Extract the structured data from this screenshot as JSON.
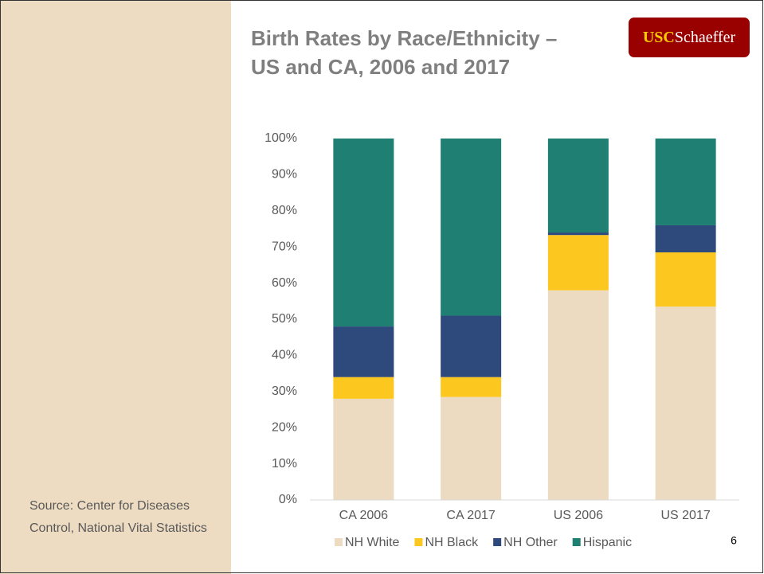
{
  "chart_data": {
    "type": "stacked_bar",
    "title": [
      "Birth Rates by Race/Ethnicity –",
      "US and CA, 2006 and 2017"
    ],
    "categories": [
      "CA 2006",
      "CA 2017",
      "US 2006",
      "US 2017"
    ],
    "series": [
      {
        "name": "NH White",
        "color": "#ecdbc0",
        "values": [
          28,
          28.5,
          58,
          53.5
        ]
      },
      {
        "name": "NH Black",
        "color": "#fcc820",
        "values": [
          6,
          5.5,
          15.3,
          15
        ]
      },
      {
        "name": "NH Other",
        "color": "#2e4a7d",
        "values": [
          14,
          17,
          0.7,
          7.5
        ]
      },
      {
        "name": "Hispanic",
        "color": "#1f7f72",
        "values": [
          52,
          49,
          26,
          24
        ]
      }
    ],
    "ylim": [
      0,
      100
    ],
    "yticks": [
      {
        "value": 0,
        "label": "0%"
      },
      {
        "value": 10,
        "label": "10%"
      },
      {
        "value": 20,
        "label": "20%"
      },
      {
        "value": 30,
        "label": "30%"
      },
      {
        "value": 40,
        "label": "40%"
      },
      {
        "value": 50,
        "label": "50%"
      },
      {
        "value": 60,
        "label": "60%"
      },
      {
        "value": 70,
        "label": "70%"
      },
      {
        "value": 80,
        "label": "80%"
      },
      {
        "value": 90,
        "label": "90%"
      },
      {
        "value": 100,
        "label": "100%"
      }
    ],
    "grid": false,
    "legend": "bottom"
  },
  "source": "Source: Center for Diseases Control, National Vital Statistics",
  "logo": {
    "primary": "USC",
    "secondary": "Schaeffer"
  },
  "page_number": "6"
}
